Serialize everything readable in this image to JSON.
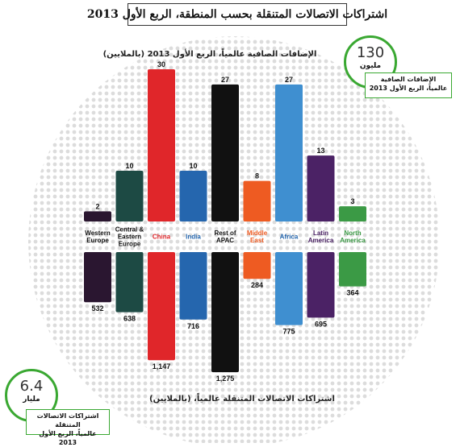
{
  "title": "اشتراكات الاتصالات المتنقلة بحسب المنطقة، الربع الأول 2013",
  "top_caption": "الإضافات الصافية عالمياً، الربع الأول 2013 (بالملايين)",
  "bottom_caption": "اشتراكات الاتصالات المتنقلة عالمياً، (بالملايين)",
  "net_additions_badge": {
    "number": "130",
    "unit": "مليون",
    "line1": "الإضافات الصافية",
    "line2": "عالمياً، الربع الأول 2013"
  },
  "subscriptions_badge": {
    "number": "6.4",
    "unit": "مليار",
    "line1": "اشتراكات الاتصالات المتنقلة",
    "line2": "عالمياً، الربع الأول 2013"
  },
  "colors": {
    "accent_green": "#3aa832",
    "globe": "#dcdcdc"
  },
  "chart_data": [
    {
      "type": "bar",
      "title": "الإضافات الصافية عالمياً، الربع الأول 2013 (بالملايين)",
      "categories": [
        "Western Europe",
        "Central & Eastern Europe",
        "China",
        "India",
        "Rest of APAC",
        "Middle East",
        "Africa",
        "Latin America",
        "North America"
      ],
      "values": [
        2,
        10,
        30,
        10,
        27,
        8,
        27,
        13,
        3
      ],
      "colors": [
        "#2a1630",
        "#1d4a44",
        "#e0262a",
        "#2566ae",
        "#111111",
        "#ee5b22",
        "#3f8fd0",
        "#4b2265",
        "#3b9a45"
      ],
      "label_colors": [
        "#111111",
        "#111111",
        "#e0262a",
        "#2566ae",
        "#111111",
        "#ee5b22",
        "#2566ae",
        "#4b2265",
        "#3b9a45"
      ],
      "orientation": "up"
    },
    {
      "type": "bar",
      "title": "اشتراكات الاتصالات المتنقلة عالمياً، (بالملايين)",
      "categories": [
        "Western Europe",
        "Central & Eastern Europe",
        "China",
        "India",
        "Rest of APAC",
        "Middle East",
        "Africa",
        "Latin America",
        "North America"
      ],
      "values": [
        532,
        638,
        1147,
        716,
        1275,
        284,
        775,
        695,
        364
      ],
      "value_labels": [
        "532",
        "638",
        "1,147",
        "716",
        "1,275",
        "284",
        "775",
        "695",
        "364"
      ],
      "orientation": "down"
    }
  ],
  "region_labels": [
    [
      "Western",
      "Europe"
    ],
    [
      "Central &",
      "Eastern",
      "Europe"
    ],
    [
      "China"
    ],
    [
      "India"
    ],
    [
      "Rest of",
      "APAC"
    ],
    [
      "Middle",
      "East"
    ],
    [
      "Africa"
    ],
    [
      "Latin",
      "America"
    ],
    [
      "North",
      "America"
    ]
  ]
}
